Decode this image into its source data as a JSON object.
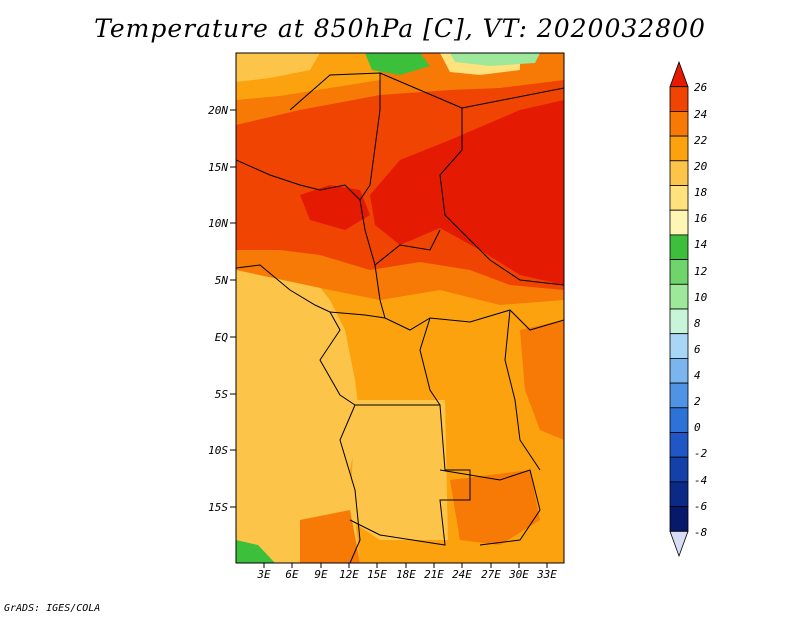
{
  "title": "Temperature at 850hPa [C], VT: 2020032800",
  "footer": "GrADS: IGES/COLA",
  "map": {
    "variable": "Temperature at 850hPa",
    "units": "C",
    "valid_time": "2020032800",
    "region": "Central Africa",
    "lat_ticks": [
      "20N",
      "15N",
      "10N",
      "5N",
      "EQ",
      "5S",
      "10S",
      "15S"
    ],
    "lon_ticks": [
      "3E",
      "6E",
      "9E",
      "12E",
      "15E",
      "18E",
      "21E",
      "24E",
      "27E",
      "30E",
      "33E"
    ]
  },
  "colorbar": {
    "labels": [
      "26",
      "24",
      "22",
      "20",
      "18",
      "16",
      "14",
      "12",
      "10",
      "8",
      "6",
      "4",
      "2",
      "0",
      "-2",
      "-4",
      "-6",
      "-8"
    ],
    "colors": [
      "#e41a02",
      "#f04402",
      "#f77906",
      "#fba20e",
      "#fdc44a",
      "#ffe27e",
      "#fff6b6",
      "#3cbf3a",
      "#6ed46b",
      "#9de89b",
      "#c8f5d9",
      "#a9d6f5",
      "#7ab5ee",
      "#4f93e5",
      "#2d72d6",
      "#1f58c4",
      "#1441a8",
      "#0b2a86",
      "#08186a",
      "#d8dcf5"
    ]
  }
}
